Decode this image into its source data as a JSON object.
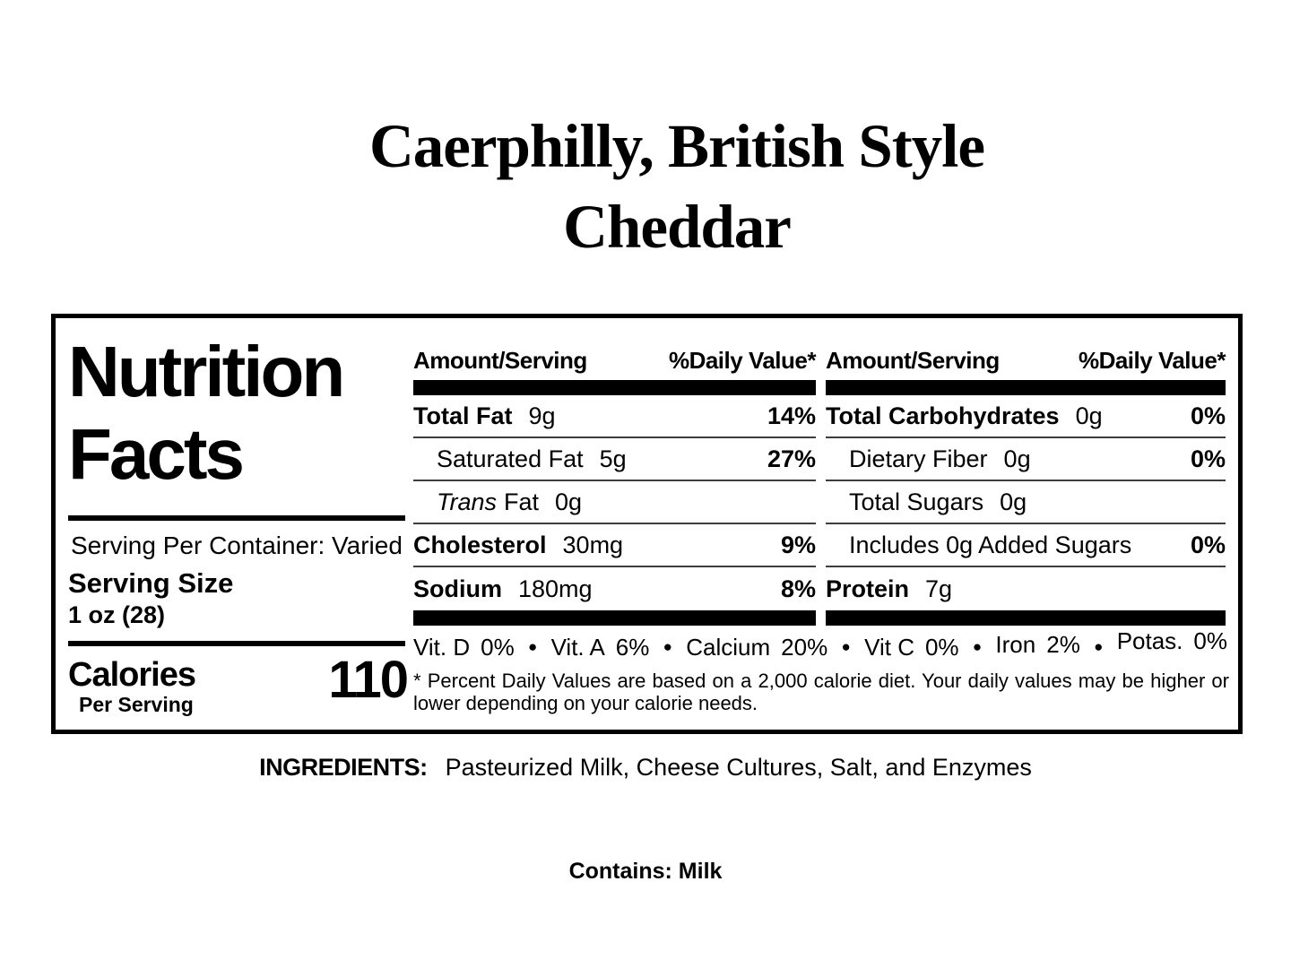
{
  "title": {
    "line1": "Caerphilly, British Style",
    "line2": "Cheddar"
  },
  "panel": {
    "heading_line1": "Nutrition",
    "heading_line2": "Facts",
    "serving_per_container": "Serving Per Container: Varied",
    "serving_size_label": "Serving Size",
    "serving_size_value": "1 oz (28)",
    "calories_label": "Calories",
    "calories_sub": "Per Serving",
    "calories_value": "110",
    "col_header_amount": "Amount/Serving",
    "col_header_dv": "%Daily Value*",
    "columns": [
      {
        "rows": [
          {
            "label": "Total Fat",
            "value": "9g",
            "dv": "14%"
          },
          {
            "label": "Saturated Fat",
            "value": "5g",
            "dv": "27%"
          },
          {
            "label_italic": "Trans",
            "label": "Fat",
            "value": "0g",
            "dv": ""
          },
          {
            "label": "Cholesterol",
            "value": "30mg",
            "dv": "9%"
          },
          {
            "label": "Sodium",
            "value": "180mg",
            "dv": "8%"
          }
        ]
      },
      {
        "rows": [
          {
            "label": "Total Carbohydrates",
            "value": "0g",
            "dv": "0%"
          },
          {
            "label": "Dietary Fiber",
            "value": "0g",
            "dv": "0%"
          },
          {
            "label": "Total Sugars",
            "value": "0g",
            "dv": ""
          },
          {
            "label": "Includes 0g Added Sugars",
            "value": "",
            "dv": "0%"
          },
          {
            "label": "Protein",
            "value": "7g",
            "dv": ""
          }
        ]
      }
    ],
    "vitamins": [
      {
        "name": "Vit. D",
        "value": "0%"
      },
      {
        "name": "Vit. A",
        "value": "6%"
      },
      {
        "name": "Calcium",
        "value": "20%"
      },
      {
        "name": "Vit C",
        "value": "0%"
      },
      {
        "name": "Iron",
        "value": "2%"
      },
      {
        "name": "Potas.",
        "value": "0%"
      }
    ],
    "bullet": "●",
    "footnote": "* Percent Daily Values are based on a 2,000 calorie diet. Your daily values may be higher or lower depending on your calorie needs."
  },
  "ingredients": {
    "label": "INGREDIENTS:",
    "text": "Pasteurized Milk, Cheese Cultures, Salt, and Enzymes"
  },
  "contains": "Contains: Milk"
}
